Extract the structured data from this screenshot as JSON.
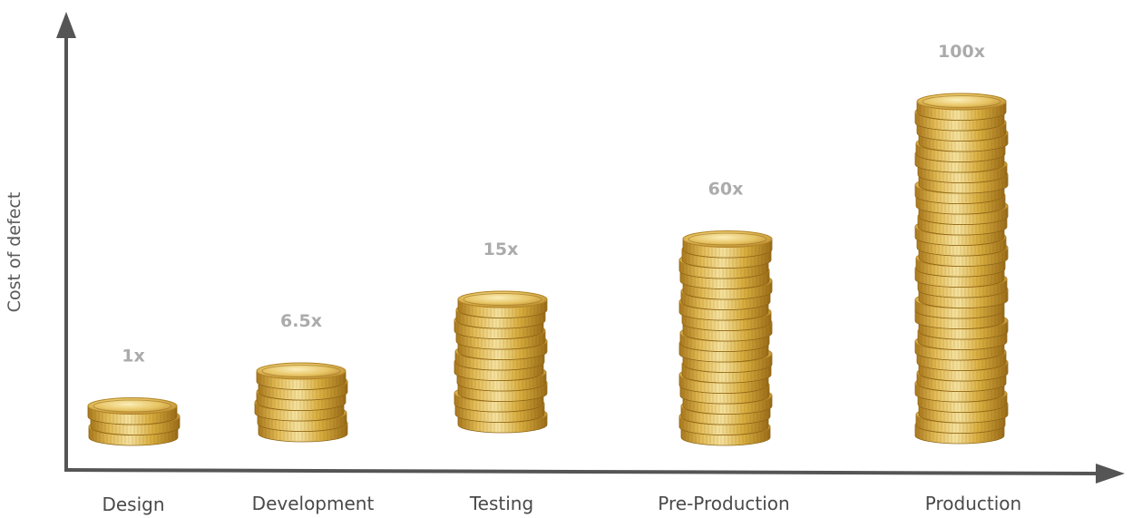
{
  "chart_data": {
    "type": "bar",
    "title": "",
    "xlabel": "",
    "ylabel": "Cost of defect",
    "categories": [
      "Design",
      "Development",
      "Testing",
      "Pre-Production",
      "Production"
    ],
    "values": [
      1,
      6.5,
      15,
      60,
      100
    ],
    "data_labels": [
      "1x",
      "6.5x",
      "15x",
      "60x",
      "100x"
    ],
    "coin_stacks": [
      3,
      6,
      12,
      19,
      32
    ],
    "grid": false,
    "legend": "none",
    "colors": {
      "axis": "#555555",
      "coin_light": "#f3d98a",
      "coin_mid": "#d9ae3f",
      "coin_dark": "#a9781c",
      "value_label": "#ababab",
      "tick_label": "#4a4a4a"
    }
  }
}
